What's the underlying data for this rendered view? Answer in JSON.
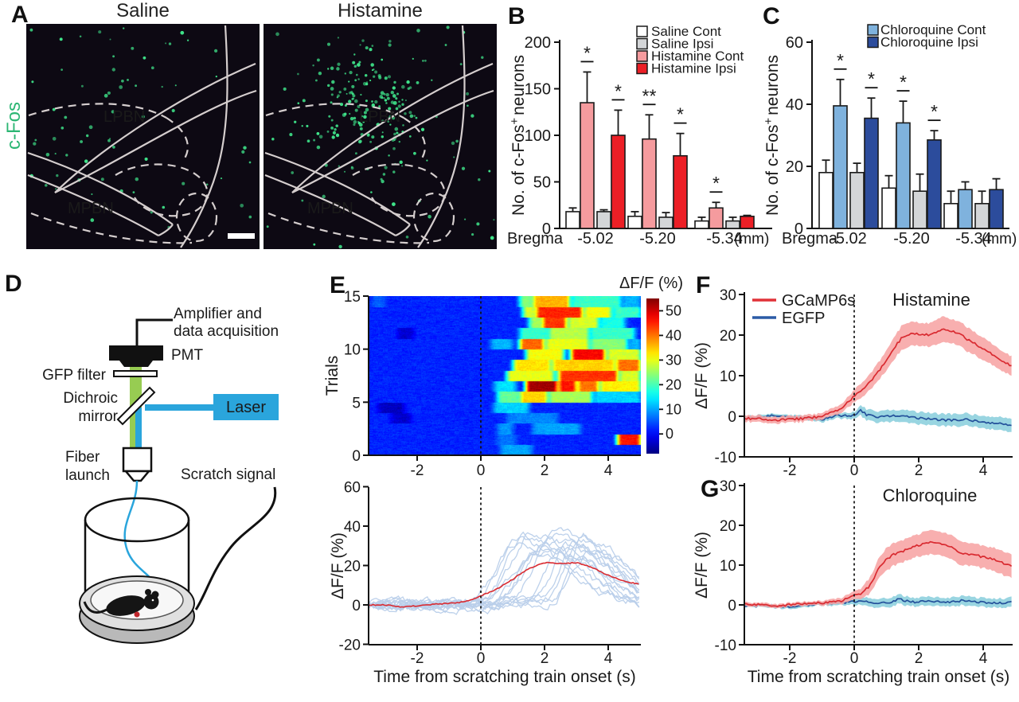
{
  "panels": {
    "A": {
      "label": "A",
      "left_title": "Saline",
      "right_title": "Histamine",
      "stain_label": "c-Fos",
      "regions": {
        "upper": "LPBN",
        "lower": "MPBN"
      },
      "dot_counts": {
        "saline": 70,
        "histamine": 235
      },
      "colors": {
        "dots": "#40E88C",
        "stain_text": "#2BB673",
        "outline": "#D5CECE",
        "bg": "#0D0913"
      }
    },
    "B": {
      "label": "B"
    },
    "C": {
      "label": "C"
    },
    "D": {
      "label": "D",
      "labels": {
        "amp1": "Amplifier and",
        "amp2": "data acquisition",
        "pmt": "PMT",
        "gfp": "GFP filter",
        "dichroic1": "Dichroic",
        "dichroic2": "mirror",
        "laser": "Laser",
        "fiber1": "Fiber",
        "fiber2": "launch",
        "scratch": "Scratch signal"
      },
      "colors": {
        "laser_blue": "#2AA5DC",
        "beam_green": "#8CC63F"
      }
    },
    "E": {
      "label": "E"
    },
    "F": {
      "label": "F"
    },
    "G": {
      "label": "G"
    }
  },
  "chart_data": [
    {
      "id": "B",
      "type": "bar",
      "ylabel_parts": [
        "No. of c-Fos",
        "+",
        "neurons"
      ],
      "x_prefix": "Bregma",
      "x_suffix": "(mm)",
      "categories": [
        "-5.02",
        "-5.20",
        "-5.34"
      ],
      "yticks": [
        0,
        50,
        100,
        150,
        200
      ],
      "ylim": [
        0,
        200
      ],
      "series": [
        {
          "name": "Saline Cont",
          "color": "#FFFFFF",
          "text_color": "#1a1a1a",
          "values": [
            18,
            13,
            8
          ],
          "errors": [
            4,
            5,
            4
          ]
        },
        {
          "name": "Histamine Cont",
          "color": "#F59B9E",
          "text_color": "#E8898C",
          "values": [
            135,
            96,
            22
          ],
          "errors": [
            33,
            26,
            6
          ]
        },
        {
          "name": "Saline Ipsi",
          "color": "#D4D6D8",
          "text_color": "#1a1a1a",
          "values": [
            18,
            12,
            8
          ],
          "errors": [
            2,
            5,
            4
          ]
        },
        {
          "name": "Histamine Ipsi",
          "color": "#EC1F26",
          "text_color": "#EC1F26",
          "values": [
            100,
            78,
            13
          ],
          "errors": [
            27,
            24,
            1
          ]
        }
      ],
      "legend_indices": [
        0,
        2,
        1,
        3
      ],
      "sig": [
        {
          "cat": 0,
          "series": 1,
          "mark": "*"
        },
        {
          "cat": 0,
          "series": 3,
          "mark": "*"
        },
        {
          "cat": 1,
          "series": 1,
          "mark": "**"
        },
        {
          "cat": 1,
          "series": 3,
          "mark": "*"
        },
        {
          "cat": 2,
          "series": 1,
          "mark": "*"
        }
      ]
    },
    {
      "id": "C",
      "type": "bar",
      "ylabel_parts": [
        "No. of c-Fos",
        "+",
        "neurons"
      ],
      "x_prefix": "Bregma",
      "x_suffix": "(mm)",
      "categories": [
        "-5.02",
        "-5.20",
        "-5.34"
      ],
      "yticks": [
        0,
        20,
        40,
        60
      ],
      "ylim": [
        0,
        60
      ],
      "series": [
        {
          "name": "Saline Cont",
          "color": "#FFFFFF",
          "text_color": "#1a1a1a",
          "values": [
            18,
            13,
            8
          ],
          "errors": [
            4,
            4,
            4
          ]
        },
        {
          "name": "Chloroquine Cont",
          "color": "#7FB2DD",
          "text_color": "#6FA6D8",
          "values": [
            39.5,
            34,
            12.5
          ],
          "errors": [
            8.5,
            7,
            2.5
          ]
        },
        {
          "name": "Saline Ipsi",
          "color": "#D4D6D8",
          "text_color": "#1a1a1a",
          "values": [
            18,
            12,
            8
          ],
          "errors": [
            3,
            5.5,
            4
          ]
        },
        {
          "name": "Chloroquine Ipsi",
          "color": "#2C4C9C",
          "text_color": "#27479E",
          "values": [
            35.5,
            28.5,
            12.5
          ],
          "errors": [
            6.5,
            3,
            3.5
          ]
        }
      ],
      "legend_indices": [
        1,
        3
      ],
      "sig": [
        {
          "cat": 0,
          "series": 1,
          "mark": "*"
        },
        {
          "cat": 0,
          "series": 3,
          "mark": "*"
        },
        {
          "cat": 1,
          "series": 1,
          "mark": "*"
        },
        {
          "cat": 1,
          "series": 3,
          "mark": "*"
        }
      ]
    },
    {
      "id": "E_heatmap",
      "type": "heatmap",
      "ylabel": "Trials",
      "colorbar_title": "ΔF/F (%)",
      "yticks": [
        0,
        5,
        10,
        15
      ],
      "xticks": [
        -2,
        0,
        2,
        4
      ],
      "xlim": [
        -3.5,
        5
      ],
      "trials": 15,
      "vmin": -8,
      "vmax": 55,
      "base_value": 2,
      "colorbar_ticks": [
        0,
        10,
        20,
        30,
        40,
        50
      ],
      "rows": [
        [
          [
            0.6,
            1.6,
            10
          ]
        ],
        [
          [
            0.5,
            1.1,
            7
          ],
          [
            4.25,
            5,
            46
          ]
        ],
        [
          [
            0.5,
            1.0,
            9
          ],
          [
            1.6,
            3.1,
            10
          ]
        ],
        [
          [
            -2.8,
            -2.2,
            -3
          ],
          [
            0.8,
            2.4,
            8
          ]
        ],
        [
          [
            -3.2,
            -2.4,
            -4
          ],
          [
            0.4,
            1.5,
            13
          ]
        ],
        [
          [
            0.5,
            1.2,
            22
          ],
          [
            1.2,
            2.1,
            34
          ],
          [
            2.1,
            3.5,
            26
          ],
          [
            3.5,
            5,
            13
          ]
        ],
        [
          [
            0.4,
            1.1,
            14
          ],
          [
            1.4,
            2.4,
            53
          ],
          [
            2.4,
            3.0,
            46
          ],
          [
            3.0,
            3.7,
            40
          ],
          [
            3.7,
            5,
            32
          ]
        ],
        [
          [
            0.8,
            2.3,
            30
          ],
          [
            2.4,
            4.3,
            44
          ],
          [
            4.3,
            5,
            29
          ]
        ],
        [
          [
            1.0,
            2.2,
            33
          ],
          [
            2.2,
            4.2,
            34
          ],
          [
            4.2,
            5,
            40
          ]
        ],
        [
          [
            1.4,
            2.6,
            31
          ],
          [
            2.8,
            3.9,
            47
          ],
          [
            3.9,
            5,
            29
          ]
        ],
        [
          [
            0.3,
            1.0,
            11
          ],
          [
            1.2,
            2.0,
            41
          ],
          [
            2.0,
            3.4,
            30
          ],
          [
            3.4,
            4.6,
            24
          ],
          [
            4.6,
            5,
            11
          ]
        ],
        [
          [
            -2.6,
            -2.1,
            -3
          ],
          [
            1.2,
            2.1,
            19
          ],
          [
            2.1,
            3.4,
            27
          ],
          [
            3.4,
            4.8,
            19
          ]
        ],
        [
          [
            1.5,
            1.9,
            26
          ],
          [
            1.9,
            2.7,
            44
          ],
          [
            2.7,
            3.7,
            29
          ],
          [
            3.7,
            4.5,
            17
          ]
        ],
        [
          [
            1.3,
            1.7,
            29
          ],
          [
            1.7,
            3.2,
            45
          ],
          [
            3.2,
            4.1,
            31
          ],
          [
            4.1,
            5,
            19
          ]
        ],
        [
          [
            -3.4,
            -3.0,
            6
          ],
          [
            1.2,
            1.6,
            24
          ],
          [
            1.6,
            2.8,
            36
          ],
          [
            2.8,
            4.4,
            19
          ],
          [
            4.4,
            5,
            11
          ]
        ]
      ]
    },
    {
      "id": "E_traces",
      "type": "traces",
      "ylabel": "ΔF/F (%)",
      "xlabel": "Time from scratching train onset (s)",
      "yticks": [
        -20,
        0,
        20,
        40,
        60
      ],
      "xticks": [
        -2,
        0,
        2,
        4
      ],
      "xlim": [
        -3.5,
        5
      ],
      "ylim": [
        -20,
        60
      ],
      "n_traces": 15,
      "trace_color": "#B9CFEA",
      "mean_color": "#D92B31",
      "mean_x": [
        -3.5,
        -3,
        -2.5,
        -2,
        -1.5,
        -1,
        -0.5,
        0,
        0.5,
        1,
        1.5,
        2,
        2.5,
        3,
        3.5,
        4,
        4.5,
        5
      ],
      "mean_y": [
        0,
        0,
        -1,
        -0.5,
        0.3,
        0.8,
        1.5,
        4.5,
        8,
        13,
        18.5,
        21.5,
        21,
        21.5,
        19,
        15,
        12,
        10.5
      ]
    },
    {
      "id": "F",
      "type": "line",
      "title": "Histamine",
      "ylabel": "ΔF/F (%)",
      "yticks": [
        -10,
        0,
        10,
        20,
        30
      ],
      "xticks": [
        -2,
        0,
        2,
        4
      ],
      "xlim": [
        -3.4,
        4.9
      ],
      "ylim": [
        -10,
        30
      ],
      "legend": [
        {
          "name": "GCaMP6s",
          "color": "#E03238"
        },
        {
          "name": "EGFP",
          "color": "#2B5BA6"
        }
      ],
      "series": [
        {
          "name": "GCaMP6s",
          "color": "#D92B31",
          "band_color": "#F7A6A6",
          "x": [
            -3.4,
            -3,
            -2.5,
            -2,
            -1.5,
            -1,
            -0.5,
            -0.25,
            0,
            0.25,
            0.5,
            0.75,
            1,
            1.25,
            1.5,
            1.75,
            2,
            2.25,
            2.5,
            2.75,
            3,
            3.25,
            3.5,
            3.75,
            4,
            4.25,
            4.5,
            4.75,
            4.9
          ],
          "y": [
            -0.5,
            -0.6,
            -1,
            -0.8,
            -0.5,
            0,
            1.5,
            3,
            5,
            6.5,
            8.5,
            11,
            14,
            17,
            19.5,
            20.3,
            20.3,
            20,
            20.5,
            21.3,
            21,
            20.5,
            19,
            18,
            16.5,
            15.5,
            14,
            13,
            12.2
          ],
          "band": [
            0.8,
            0.8,
            0.8,
            0.8,
            0.8,
            0.8,
            1,
            1.2,
            1.5,
            1.8,
            2,
            2.2,
            2.5,
            2.8,
            3,
            3,
            2.8,
            2.8,
            3,
            3.2,
            3,
            3,
            3,
            2.8,
            2.8,
            2.6,
            2.5,
            2.4,
            2.4
          ]
        },
        {
          "name": "EGFP",
          "color": "#24519B",
          "band_color": "#8ED0DE",
          "x": [
            -3.4,
            -3,
            -2.5,
            -2,
            -1.5,
            -1,
            -0.5,
            0,
            0.2,
            0.4,
            0.7,
            1,
            1.5,
            2,
            2.5,
            3,
            3.5,
            4,
            4.5,
            4.9
          ],
          "y": [
            -0.4,
            -0.2,
            0.2,
            -0.2,
            -0.5,
            -0.8,
            0.2,
            0.2,
            1.5,
            0.3,
            -0.2,
            0,
            0.2,
            -0.5,
            -0.8,
            -1,
            -0.8,
            -1.4,
            -1.8,
            -2.3
          ],
          "band": [
            0.5,
            0.5,
            0.5,
            0.5,
            0.6,
            0.6,
            0.7,
            0.8,
            1.2,
            1.4,
            1.4,
            1.4,
            1.5,
            1.5,
            1.5,
            1.5,
            1.5,
            1.5,
            1.6,
            1.6
          ]
        }
      ]
    },
    {
      "id": "G",
      "type": "line",
      "title": "Chloroquine",
      "ylabel": "ΔF/F (%)",
      "xlabel": "Time from scratching train onset (s)",
      "yticks": [
        -10,
        0,
        10,
        20,
        30
      ],
      "xticks": [
        -2,
        0,
        2,
        4
      ],
      "xlim": [
        -3.4,
        4.9
      ],
      "ylim": [
        -10,
        30
      ],
      "series": [
        {
          "name": "GCaMP6s",
          "color": "#D92B31",
          "band_color": "#F7A6A6",
          "x": [
            -3.4,
            -3,
            -2.5,
            -2,
            -1.5,
            -1,
            -0.5,
            -0.25,
            0,
            0.25,
            0.5,
            0.75,
            1,
            1.25,
            1.5,
            1.75,
            2,
            2.25,
            2.5,
            2.75,
            3,
            3.25,
            3.5,
            3.75,
            4,
            4.25,
            4.5,
            4.75,
            4.9
          ],
          "y": [
            0.3,
            0,
            -0.3,
            0,
            0.3,
            0.5,
            0.8,
            1.5,
            2.3,
            3,
            5,
            9,
            11.5,
            12.8,
            13.5,
            14.2,
            15,
            15.8,
            15.8,
            15.2,
            14.5,
            13.2,
            12.8,
            12.5,
            12,
            11.5,
            11,
            10,
            9.6
          ],
          "band": [
            0.5,
            0.5,
            0.5,
            0.5,
            0.5,
            0.6,
            0.7,
            0.9,
            1.1,
            1.4,
            2,
            2.5,
            2.8,
            2.8,
            2.8,
            2.8,
            2.8,
            3,
            3,
            3,
            3,
            3,
            2.8,
            2.8,
            2.8,
            2.8,
            3,
            3,
            3
          ]
        },
        {
          "name": "EGFP",
          "color": "#24519B",
          "band_color": "#8ED0DE",
          "x": [
            -3.4,
            -3,
            -2.5,
            -2,
            -1.5,
            -1,
            -0.5,
            0,
            0.3,
            0.7,
            1,
            1.4,
            1.8,
            2.2,
            2.6,
            3,
            3.4,
            3.8,
            4.2,
            4.6,
            4.9
          ],
          "y": [
            -0.3,
            -0.2,
            -0.3,
            -0.4,
            0,
            0.3,
            0.4,
            0.9,
            1.1,
            0.5,
            0.5,
            1.4,
            0.7,
            0.9,
            0.8,
            0.7,
            1.1,
            0.7,
            0.6,
            0.5,
            1
          ],
          "band": [
            0.4,
            0.4,
            0.4,
            0.5,
            0.5,
            0.5,
            0.6,
            0.8,
            1,
            1.1,
            1.1,
            1.2,
            1.1,
            1.1,
            1.1,
            1.1,
            1.2,
            1.1,
            1.1,
            1.1,
            1.2
          ]
        }
      ]
    }
  ]
}
